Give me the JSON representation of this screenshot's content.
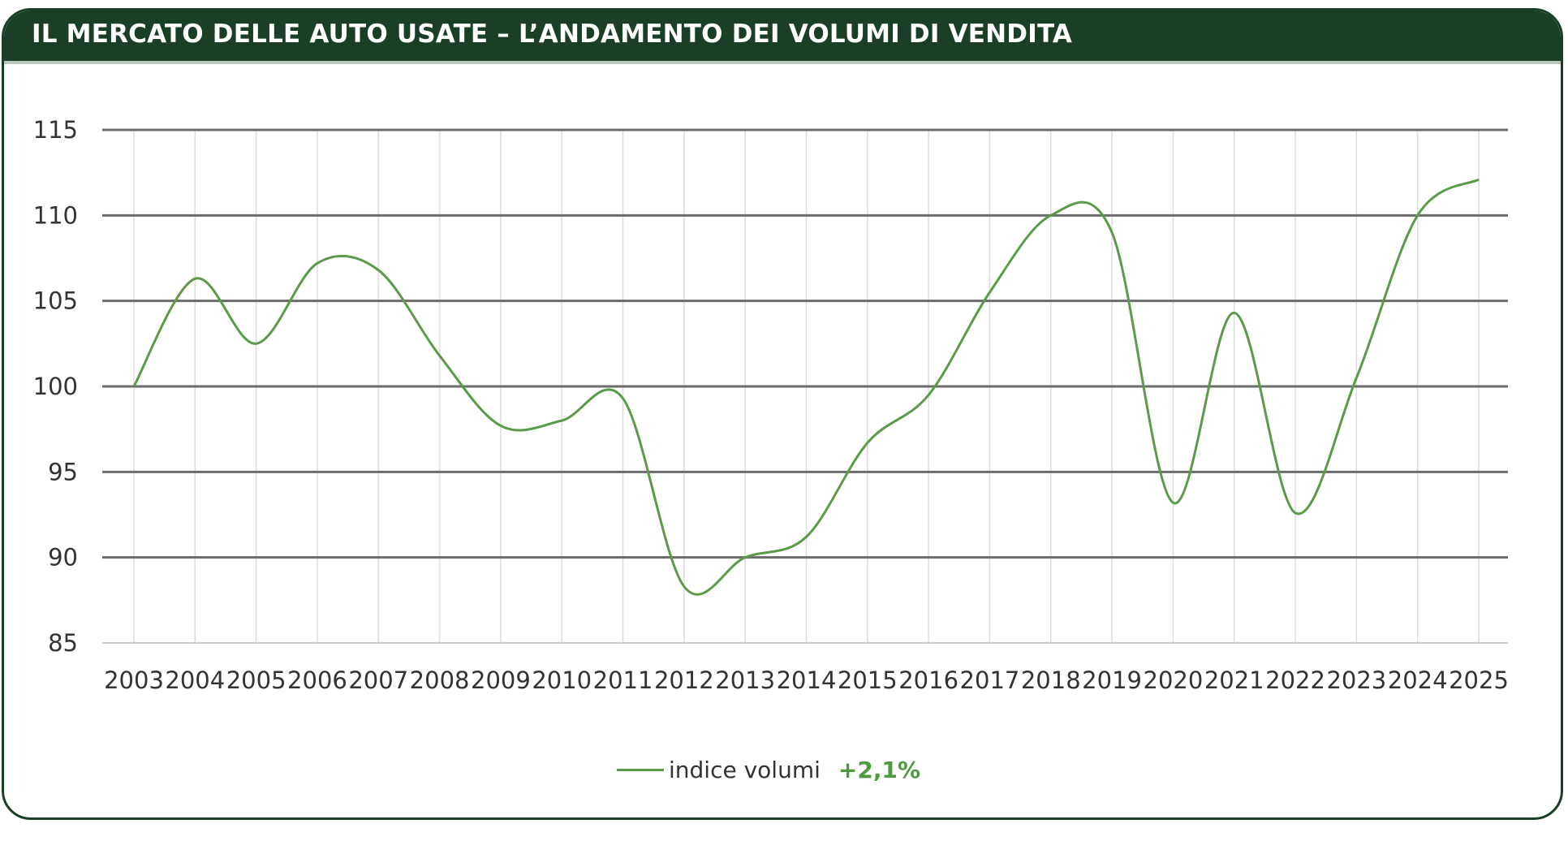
{
  "header": {
    "title": "IL MERCATO DELLE AUTO USATE – L’ANDAMENTO DEI VOLUMI DI VENDITA"
  },
  "colors": {
    "header_bg": "#1b3f26",
    "line": "#5a9a4a",
    "delta": "#4e9a3f"
  },
  "legend": {
    "label": "indice volumi",
    "delta": "+2,1%"
  },
  "chart_data": {
    "type": "line",
    "title": "IL MERCATO DELLE AUTO USATE – L’ANDAMENTO DEI VOLUMI DI VENDITA",
    "xlabel": "",
    "ylabel": "",
    "categories": [
      "2003",
      "2004",
      "2005",
      "2006",
      "2007",
      "2008",
      "2009",
      "2010",
      "2011",
      "2012",
      "2013",
      "2014",
      "2015",
      "2016",
      "2017",
      "2018",
      "2019",
      "2020",
      "2021",
      "2022",
      "2023",
      "2024",
      "2025"
    ],
    "series": [
      {
        "name": "indice volumi",
        "values": [
          100.0,
          106.3,
          102.5,
          107.2,
          106.8,
          101.8,
          97.7,
          98.0,
          99.3,
          88.3,
          90.0,
          91.2,
          96.7,
          99.5,
          105.5,
          110.0,
          109.0,
          93.2,
          104.3,
          92.6,
          100.5,
          110.0,
          112.1
        ]
      }
    ],
    "ylim": [
      85,
      115
    ],
    "yticks": [
      115,
      110,
      105,
      100,
      95,
      90,
      85
    ],
    "grid": true,
    "legend_position": "bottom"
  }
}
